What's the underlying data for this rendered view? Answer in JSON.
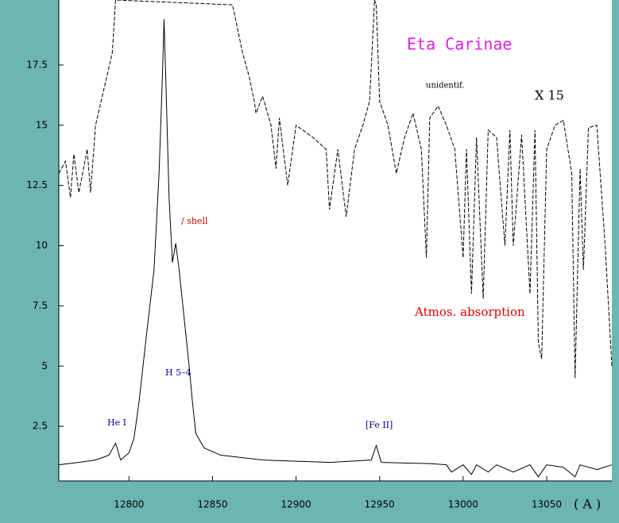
{
  "chart_data": {
    "type": "line",
    "title": "Eta Carinae",
    "x_label": "( A )",
    "annotations": [
      "X 15",
      "unidentif.",
      "/ shell",
      "Atmos. absorption",
      "H 5–4",
      "He I",
      "[Fe II]"
    ],
    "xlim": [
      12758,
      13089
    ],
    "ylim": [
      0.23,
      20.2
    ],
    "xticks": [
      12800,
      12850,
      12900,
      12950,
      13000,
      13050
    ],
    "yticks": [
      2.5,
      5,
      7.5,
      10,
      12.5,
      15,
      17.5
    ],
    "series": [
      {
        "color": "#000000",
        "x": [
          12758,
          12770,
          12780,
          12788,
          12792,
          12795,
          12800,
          12803,
          12806,
          12810,
          12815,
          12818,
          12820,
          12821,
          12822,
          12824,
          12826,
          12828,
          12830,
          12833,
          12836,
          12838,
          12840,
          12845,
          12855,
          12880,
          12920,
          12945,
          12948,
          12951,
          12980,
          12990,
          12993,
          13000,
          13005,
          13008,
          13015,
          13020,
          13030,
          13040,
          13045,
          13050,
          13060,
          13067,
          13070,
          13080,
          13089
        ],
        "values": [
          0.9,
          1.0,
          1.1,
          1.3,
          1.8,
          1.1,
          1.4,
          2.0,
          3.5,
          6,
          9,
          13,
          17,
          19.4,
          17,
          12,
          9.3,
          10.1,
          9,
          7,
          5,
          3.5,
          2.2,
          1.6,
          1.3,
          1.1,
          1.0,
          1.1,
          1.7,
          1.0,
          0.95,
          0.9,
          0.6,
          0.9,
          0.5,
          0.9,
          0.6,
          0.9,
          0.6,
          0.9,
          0.4,
          0.9,
          0.8,
          0.4,
          0.9,
          0.7,
          0.9
        ]
      },
      {
        "color": "#000000",
        "x": [
          12758,
          12762,
          12765,
          12767,
          12770,
          12775,
          12777,
          12780,
          12785,
          12790,
          12792,
          12862,
          12868,
          12872,
          12875,
          12876,
          12880,
          12885,
          12888,
          12890,
          12895,
          12900,
          12910,
          12918,
          12920,
          12925,
          12930,
          12935,
          12940,
          12944,
          12947,
          12948,
          12950,
          12955,
          12960,
          12965,
          12970,
          12975,
          12978,
          12980,
          12985,
          12990,
          12995,
          13000,
          13002,
          13005,
          13008,
          13012,
          13015,
          13020,
          13025,
          13028,
          13030,
          13035,
          13040,
          13043,
          13045,
          13047,
          13050,
          13055,
          13060,
          13065,
          13067,
          13070,
          13072,
          13075,
          13080,
          13085,
          13089
        ],
        "values": [
          13,
          13.5,
          12,
          13.8,
          12.2,
          14,
          12.2,
          15,
          16.5,
          18,
          20.2,
          20,
          18,
          17,
          16,
          15.5,
          16.2,
          15,
          13.2,
          15.3,
          12.5,
          15,
          14.5,
          14,
          11.5,
          14,
          11.2,
          14,
          15,
          16,
          20.2,
          20,
          16,
          15,
          13,
          14.5,
          15.5,
          14,
          9.5,
          15.3,
          15.8,
          15,
          14,
          9.5,
          14,
          8,
          14.5,
          7.8,
          14.8,
          14.5,
          10,
          14.8,
          10,
          14.6,
          8,
          14.8,
          6,
          5.3,
          14,
          15,
          15.2,
          13,
          4.5,
          13.2,
          9,
          14.9,
          15,
          10,
          5
        ]
      }
    ]
  }
}
